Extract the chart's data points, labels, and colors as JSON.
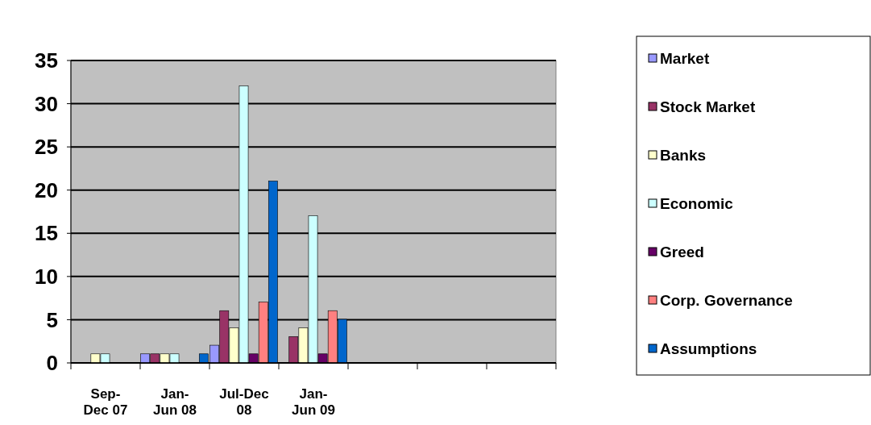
{
  "chart_data": {
    "type": "bar",
    "categories": [
      "Sep-\nDec 07",
      "Jan-\nJun 08",
      "Jul-Dec\n08",
      "Jan-\nJun 09",
      null,
      null,
      null
    ],
    "series": [
      {
        "name": "Market",
        "color": "#9999ff",
        "values": [
          0,
          1,
          2,
          0,
          null,
          null,
          null
        ]
      },
      {
        "name": "Stock Market",
        "color": "#993366",
        "values": [
          0,
          1,
          6,
          3,
          null,
          null,
          null
        ]
      },
      {
        "name": "Banks",
        "color": "#ffffcc",
        "values": [
          1,
          1,
          4,
          4,
          null,
          null,
          null
        ]
      },
      {
        "name": "Economic",
        "color": "#ccffff",
        "values": [
          1,
          1,
          32,
          17,
          null,
          null,
          null
        ]
      },
      {
        "name": "Greed",
        "color": "#660066",
        "values": [
          0,
          0,
          1,
          1,
          null,
          null,
          null
        ]
      },
      {
        "name": "Corp. Governance",
        "color": "#ff8080",
        "values": [
          0,
          0,
          7,
          6,
          null,
          null,
          null
        ]
      },
      {
        "name": "Assumptions",
        "color": "#0066cc",
        "values": [
          0,
          1,
          21,
          5,
          null,
          null,
          null
        ]
      }
    ],
    "ylim": [
      0,
      35
    ],
    "yticks": [
      0,
      5,
      10,
      15,
      20,
      25,
      30,
      35
    ],
    "grid": "y",
    "legend": "right"
  }
}
